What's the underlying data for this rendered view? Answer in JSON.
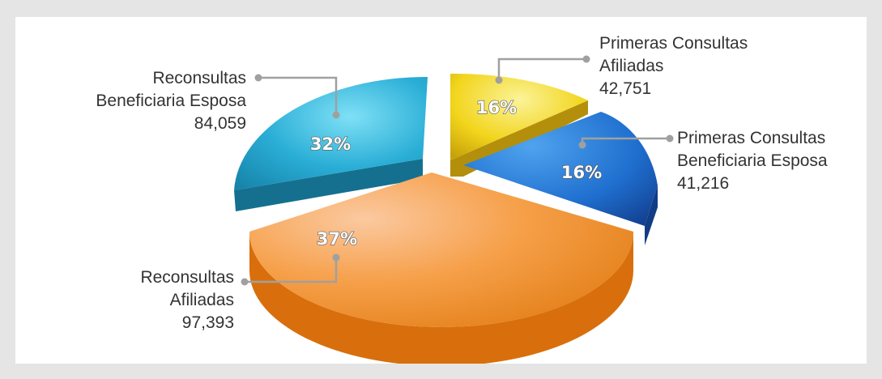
{
  "chart_data": {
    "type": "pie",
    "title": "",
    "slices": [
      {
        "label_line1": "Primeras Consultas",
        "label_line2": "Afiliadas",
        "value_text": "42,751",
        "value": 42751,
        "percent_text": "16%",
        "color": "#f2d51c"
      },
      {
        "label_line1": "Primeras Consultas",
        "label_line2": "Beneficiaria Esposa",
        "value_text": "41,216",
        "value": 41216,
        "percent_text": "16%",
        "color": "#1f6fcf"
      },
      {
        "label_line1": "Reconsultas",
        "label_line2": "Afiliadas",
        "value_text": "97,393",
        "value": 97393,
        "percent_text": "37%",
        "color": "#f28a1a"
      },
      {
        "label_line1": "Reconsultas",
        "label_line2": "Beneficiaria Esposa",
        "value_text": "84,059",
        "value": 84059,
        "percent_text": "32%",
        "color": "#2aaed6"
      }
    ]
  },
  "colors": {
    "background": "#e5e5e5",
    "panel": "#ffffff",
    "leader": "#a0a0a0"
  }
}
